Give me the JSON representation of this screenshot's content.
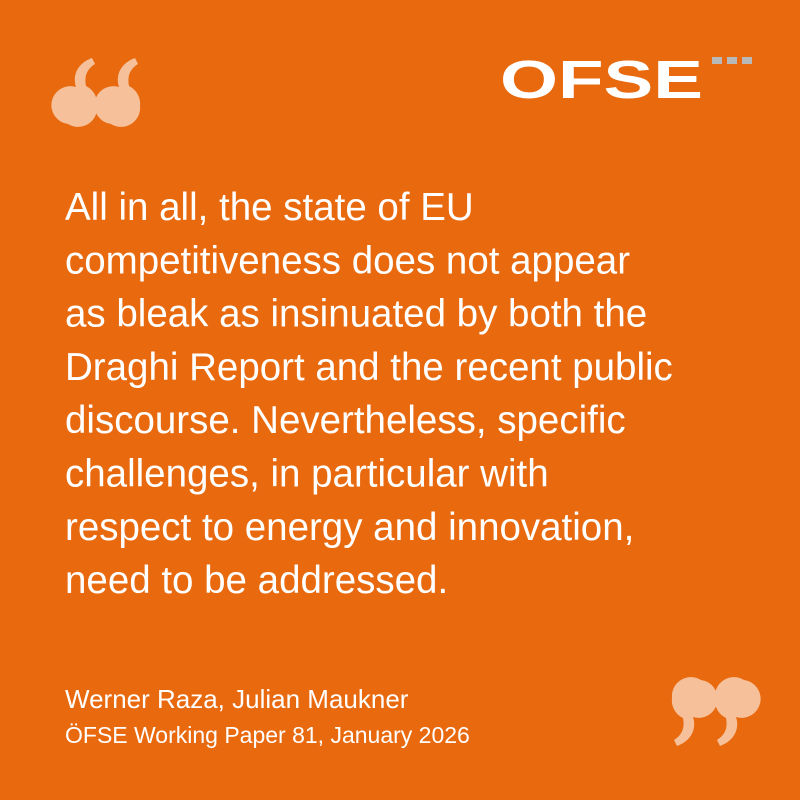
{
  "logo": "OFSE",
  "quote": {
    "lines": [
      "All in all, the state of EU",
      "competitiveness does not appear",
      "as bleak as insinuated by both the",
      "Draghi Report and the recent public",
      "discourse. Nevertheless, specific",
      "challenges, in particular with",
      "respect to energy and innovation,",
      "need to be addressed."
    ]
  },
  "attribution": {
    "authors": "Werner Raza, Julian Maukner",
    "source": "ÖFSE Working Paper 81, January 2026"
  }
}
